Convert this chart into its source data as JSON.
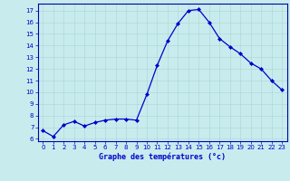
{
  "hours": [
    0,
    1,
    2,
    3,
    4,
    5,
    6,
    7,
    8,
    9,
    10,
    11,
    12,
    13,
    14,
    15,
    16,
    17,
    18,
    19,
    20,
    21,
    22,
    23
  ],
  "temperatures": [
    6.7,
    6.2,
    7.2,
    7.5,
    7.1,
    7.4,
    7.6,
    7.7,
    7.7,
    7.6,
    9.8,
    12.3,
    14.4,
    15.9,
    17.0,
    17.1,
    16.0,
    14.6,
    13.9,
    13.3,
    12.5,
    12.0,
    11.0,
    10.2
  ],
  "xlabel": "Graphe des températures (°c)",
  "ylim": [
    5.8,
    17.6
  ],
  "xlim": [
    -0.5,
    23.5
  ],
  "yticks": [
    6,
    7,
    8,
    9,
    10,
    11,
    12,
    13,
    14,
    15,
    16,
    17
  ],
  "xticks": [
    0,
    1,
    2,
    3,
    4,
    5,
    6,
    7,
    8,
    9,
    10,
    11,
    12,
    13,
    14,
    15,
    16,
    17,
    18,
    19,
    20,
    21,
    22,
    23
  ],
  "line_color": "#0000cc",
  "marker": "D",
  "marker_size": 2.0,
  "bg_color": "#c8ecee",
  "grid_color": "#b0d8d8",
  "axis_color": "#0000aa",
  "label_color": "#0000cc",
  "tick_color": "#0000cc"
}
